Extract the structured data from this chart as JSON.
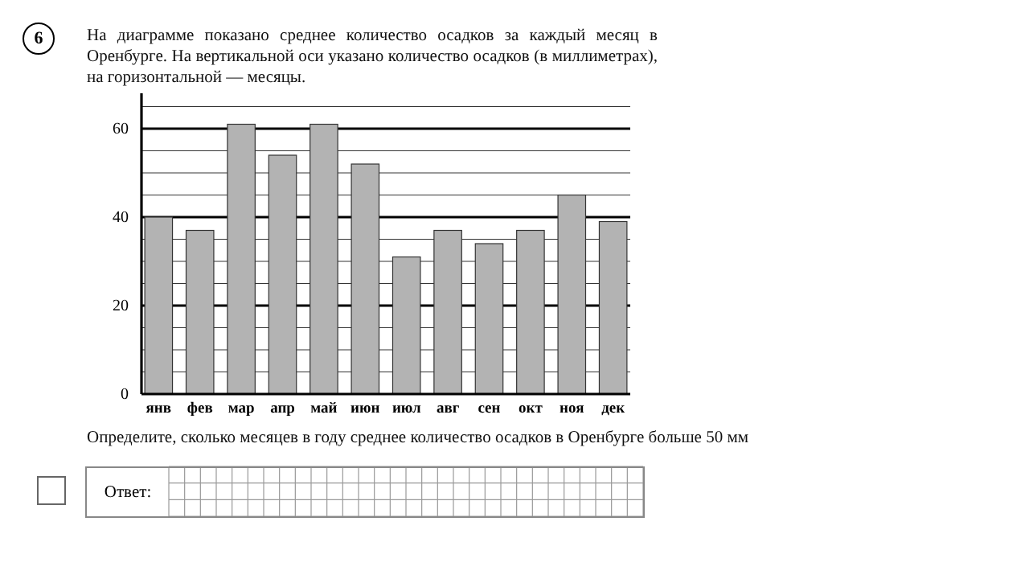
{
  "chart_data": {
    "type": "bar",
    "title": "На диаграмме показано среднее количество осадков за каждый месяц в Оренбурге. На вертикальной оси указано количество осадков (в миллиметрах), на горизонтальной — месяцы.",
    "categories": [
      "янв",
      "фев",
      "мар",
      "апр",
      "май",
      "июн",
      "июл",
      "авг",
      "сен",
      "окт",
      "ноя",
      "дек"
    ],
    "values": [
      40,
      37,
      61,
      54,
      61,
      52,
      31,
      37,
      34,
      37,
      45,
      39
    ],
    "color": "#b3b3b3",
    "ylim": [
      0,
      68
    ],
    "yticks": [
      0,
      {
        "value": 5,
        "label": null
      },
      {
        "value": 10,
        "label": null
      },
      {
        "value": 15,
        "label": null
      },
      20,
      {
        "value": 25,
        "label": null
      },
      {
        "value": 30,
        "label": null
      },
      {
        "value": 35,
        "label": null
      },
      40,
      {
        "value": 45,
        "label": null
      },
      {
        "value": 50,
        "label": null
      },
      {
        "value": 55,
        "label": null
      },
      60,
      {
        "value": 65,
        "label": null
      }
    ],
    "grid": "y",
    "annotations": [
      "6",
      "Определите, сколько месяцев в году среднее количество осадков в Оренбурге больше 50 мм",
      "Ответ:"
    ]
  }
}
